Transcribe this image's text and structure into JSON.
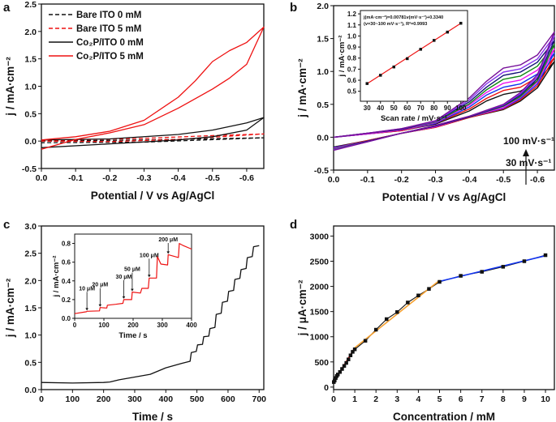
{
  "chart_data": [
    {
      "panel": "a",
      "type": "line",
      "xlabel": "Potential / V vs Ag/AgCl",
      "ylabel": "j / mA·cm⁻²",
      "xlim": [
        0,
        -0.65
      ],
      "ylim": [
        -0.5,
        2.5
      ],
      "xticks": [
        0.0,
        -0.1,
        -0.2,
        -0.3,
        -0.4,
        -0.5,
        -0.6
      ],
      "xtick_labels": [
        "0.0",
        "-0.1",
        "-0.2",
        "-0.3",
        "-0.4",
        "-0.5",
        "-0.6"
      ],
      "yticks": [
        -0.5,
        0.0,
        0.5,
        1.0,
        1.5,
        2.0,
        2.5
      ],
      "ytick_labels": [
        "-0.5",
        "0.0",
        "0.5",
        "1.0",
        "1.5",
        "2.0",
        "2.5"
      ],
      "legend": "top-left",
      "series": [
        {
          "name": "Bare ITO 0 mM",
          "color": "#111111",
          "dash": true,
          "x": [
            0,
            -0.3,
            -0.65,
            -0.3,
            0
          ],
          "y": [
            0.0,
            0.02,
            0.06,
            -0.02,
            -0.03
          ]
        },
        {
          "name": "Bare ITO 5 mM",
          "color": "#ee1111",
          "dash": true,
          "x": [
            0,
            -0.3,
            -0.5,
            -0.65,
            -0.4,
            -0.2,
            0
          ],
          "y": [
            0.01,
            0.05,
            0.1,
            0.13,
            0.03,
            -0.01,
            0.0
          ]
        },
        {
          "name": "Co₂P/ITO 0 mM",
          "color": "#111111",
          "dash": false,
          "x": [
            0,
            -0.2,
            -0.4,
            -0.5,
            -0.6,
            -0.65,
            -0.6,
            -0.5,
            -0.4,
            -0.2,
            0
          ],
          "y": [
            0.02,
            0.04,
            0.12,
            0.2,
            0.33,
            0.43,
            0.2,
            0.08,
            0.02,
            -0.05,
            -0.12
          ]
        },
        {
          "name": "Co₂P/ITO 5 mM",
          "color": "#ee1111",
          "dash": false,
          "x": [
            0,
            -0.1,
            -0.2,
            -0.3,
            -0.4,
            -0.45,
            -0.5,
            -0.55,
            -0.6,
            -0.65,
            -0.6,
            -0.55,
            -0.5,
            -0.4,
            -0.3,
            -0.2,
            -0.1,
            0
          ],
          "y": [
            0.02,
            0.08,
            0.18,
            0.38,
            0.8,
            1.1,
            1.45,
            1.65,
            1.8,
            2.08,
            1.4,
            1.15,
            0.95,
            0.6,
            0.3,
            0.15,
            0.03,
            -0.15
          ]
        }
      ]
    },
    {
      "panel": "b",
      "type": "line",
      "xlabel": "Potential / V vs Ag/AgCl",
      "ylabel": "j / mA·cm⁻²",
      "xlim": [
        0,
        -0.65
      ],
      "ylim": [
        -0.5,
        2.0
      ],
      "xticks": [
        0.0,
        -0.1,
        -0.2,
        -0.3,
        -0.4,
        -0.5,
        -0.6
      ],
      "xtick_labels": [
        "0.0",
        "-0.1",
        "-0.2",
        "-0.3",
        "-0.4",
        "-0.5",
        "-0.6"
      ],
      "yticks": [
        -0.5,
        0.0,
        0.5,
        1.0,
        1.5,
        2.0
      ],
      "ytick_labels": [
        "-0.5",
        "0.0",
        "0.5",
        "1.0",
        "1.5",
        "2.0"
      ],
      "x_loop": [
        0,
        -0.1,
        -0.2,
        -0.3,
        -0.4,
        -0.45,
        -0.5,
        -0.55,
        -0.6,
        -0.65,
        -0.6,
        -0.55,
        -0.5,
        -0.4,
        -0.3,
        -0.2,
        -0.1,
        0
      ],
      "series": [
        {
          "scan_rate": 30,
          "color": "#111111",
          "y": [
            0,
            0.05,
            0.1,
            0.2,
            0.4,
            0.55,
            0.65,
            0.7,
            0.85,
            1.15,
            0.75,
            0.55,
            0.42,
            0.3,
            0.15,
            0.06,
            -0.05,
            -0.15
          ]
        },
        {
          "scan_rate": 40,
          "color": "#ee1111",
          "y": [
            0,
            0.05,
            0.1,
            0.21,
            0.43,
            0.59,
            0.71,
            0.76,
            0.91,
            1.21,
            0.78,
            0.57,
            0.43,
            0.3,
            0.15,
            0.06,
            -0.05,
            -0.16
          ]
        },
        {
          "scan_rate": 50,
          "color": "#1133ee",
          "y": [
            0,
            0.05,
            0.11,
            0.21,
            0.46,
            0.64,
            0.76,
            0.81,
            0.96,
            1.28,
            0.81,
            0.59,
            0.44,
            0.31,
            0.16,
            0.06,
            -0.06,
            -0.16
          ]
        },
        {
          "scan_rate": 60,
          "color": "#ee11ee",
          "y": [
            0,
            0.05,
            0.11,
            0.22,
            0.49,
            0.68,
            0.82,
            0.87,
            1.02,
            1.34,
            0.84,
            0.61,
            0.45,
            0.31,
            0.16,
            0.06,
            -0.06,
            -0.17
          ]
        },
        {
          "scan_rate": 70,
          "color": "#118811",
          "y": [
            0,
            0.06,
            0.12,
            0.23,
            0.51,
            0.72,
            0.88,
            0.93,
            1.08,
            1.41,
            0.86,
            0.62,
            0.47,
            0.31,
            0.17,
            0.06,
            -0.06,
            -0.18
          ]
        },
        {
          "scan_rate": 80,
          "color": "#111177",
          "y": [
            0,
            0.06,
            0.12,
            0.24,
            0.54,
            0.76,
            0.94,
            0.99,
            1.14,
            1.47,
            0.89,
            0.64,
            0.48,
            0.31,
            0.17,
            0.06,
            -0.06,
            -0.19
          ]
        },
        {
          "scan_rate": 90,
          "color": "#8833ee",
          "y": [
            0,
            0.06,
            0.13,
            0.24,
            0.57,
            0.81,
            0.99,
            1.04,
            1.19,
            1.54,
            0.92,
            0.66,
            0.49,
            0.32,
            0.18,
            0.06,
            -0.07,
            -0.19
          ]
        },
        {
          "scan_rate": 100,
          "color": "#771199",
          "y": [
            0,
            0.06,
            0.13,
            0.25,
            0.6,
            0.85,
            1.05,
            1.1,
            1.25,
            1.6,
            0.95,
            0.68,
            0.5,
            0.32,
            0.18,
            0.06,
            -0.07,
            -0.2
          ]
        }
      ],
      "annotations": {
        "high": "100 mV·s⁻¹",
        "low": "30 mV·s⁻¹"
      },
      "inset": {
        "type": "scatter",
        "xlabel": "Scan rate / mV·s⁻¹",
        "ylabel": "j / mA·cm⁻²",
        "xlim": [
          25,
          105
        ],
        "ylim": [
          0.41,
          1.23
        ],
        "xticks": [
          30,
          40,
          50,
          60,
          70,
          80,
          90,
          100
        ],
        "xtick_labels": [
          "30",
          "40",
          "50",
          "60",
          "70",
          "80",
          "90",
          "100"
        ],
        "yticks": [
          0.5,
          0.6,
          0.7,
          0.8,
          0.9,
          1.0,
          1.1,
          1.2
        ],
        "ytick_labels": [
          "0.5",
          "0.6",
          "0.7",
          "0.8",
          "0.9",
          "1.0",
          "1.1",
          "1.2"
        ],
        "x": [
          30,
          40,
          50,
          60,
          70,
          80,
          90,
          100
        ],
        "y": [
          0.57,
          0.645,
          0.72,
          0.795,
          0.88,
          0.96,
          1.035,
          1.115
        ],
        "fit": {
          "slope": 0.00781,
          "intercept": 0.334,
          "color": "#ee1111"
        },
        "equation_line1": "j(mA·cm⁻²)=0.00781v(mV·s⁻¹)+0.3340",
        "equation_line2": "(v=30~100 mV·s⁻¹), R²=0.9993"
      }
    },
    {
      "panel": "c",
      "type": "line",
      "xlabel": "Time / s",
      "ylabel": "j / mA·cm⁻²",
      "xlim": [
        0,
        715
      ],
      "ylim": [
        0,
        3.0
      ],
      "xticks": [
        0,
        100,
        200,
        300,
        400,
        500,
        600,
        700
      ],
      "xtick_labels": [
        "0",
        "100",
        "200",
        "300",
        "400",
        "500",
        "600",
        "700"
      ],
      "yticks": [
        0,
        0.5,
        1.0,
        1.5,
        2.0,
        2.5,
        3.0
      ],
      "ytick_labels": [
        "0.0",
        "0.5",
        "1.0",
        "1.5",
        "2.0",
        "2.5",
        "3.0"
      ],
      "series": [
        {
          "color": "#111111",
          "x": [
            0,
            100,
            200,
            220,
            250,
            300,
            350,
            400,
            450,
            478,
            482,
            498,
            502,
            518,
            522,
            538,
            542,
            558,
            562,
            578,
            582,
            598,
            602,
            618,
            622,
            638,
            642,
            658,
            662,
            678,
            682,
            700
          ],
          "y": [
            0.13,
            0.12,
            0.13,
            0.14,
            0.18,
            0.23,
            0.28,
            0.4,
            0.48,
            0.52,
            0.68,
            0.7,
            0.82,
            0.83,
            0.97,
            0.98,
            1.12,
            1.14,
            1.38,
            1.4,
            1.6,
            1.62,
            1.8,
            1.82,
            2.02,
            2.04,
            2.2,
            2.22,
            2.42,
            2.44,
            2.62,
            2.64
          ]
        }
      ],
      "inset": {
        "type": "line",
        "xlabel": "Time / s",
        "ylabel": "j / mA·cm⁻²",
        "xlim": [
          0,
          400
        ],
        "ylim": [
          0,
          0.9
        ],
        "xticks": [
          0,
          100,
          200,
          300,
          400
        ],
        "xtick_labels": [
          "0",
          "100",
          "200",
          "300",
          "400"
        ],
        "yticks": [
          0,
          0.2,
          0.4,
          0.6,
          0.8
        ],
        "ytick_labels": [
          "0.0",
          "0.2",
          "0.4",
          "0.6",
          "0.8"
        ],
        "color": "#ee1111",
        "x": [
          0,
          40,
          42,
          85,
          87,
          110,
          112,
          140,
          165,
          168,
          195,
          197,
          225,
          230,
          252,
          255,
          280,
          283,
          295,
          318,
          320,
          355,
          358,
          370,
          400
        ],
        "y": [
          0.05,
          0.07,
          0.075,
          0.08,
          0.115,
          0.11,
          0.14,
          0.15,
          0.16,
          0.2,
          0.2,
          0.28,
          0.27,
          0.32,
          0.32,
          0.43,
          0.43,
          0.66,
          0.58,
          0.57,
          0.68,
          0.65,
          0.8,
          0.78,
          0.74
        ],
        "additions": [
          {
            "label": "10 μM",
            "t": 42,
            "j": 0.075
          },
          {
            "label": "20 μM",
            "t": 87,
            "j": 0.115
          },
          {
            "label": "30 μM",
            "t": 168,
            "j": 0.2
          },
          {
            "label": "50 μM",
            "t": 197,
            "j": 0.28
          },
          {
            "label": "100 μM",
            "t": 255,
            "j": 0.43
          },
          {
            "label": "200 μM",
            "t": 320,
            "j": 0.68
          }
        ]
      }
    },
    {
      "panel": "d",
      "type": "scatter",
      "xlabel": "Concentration / mM",
      "ylabel": "j / μA·cm⁻²",
      "xlim": [
        0,
        10.42
      ],
      "ylim": [
        -50,
        3200
      ],
      "xticks": [
        0,
        1,
        2,
        3,
        4,
        5,
        6,
        7,
        8,
        9,
        10
      ],
      "xtick_labels": [
        "0",
        "1",
        "2",
        "3",
        "4",
        "5",
        "6",
        "7",
        "8",
        "9",
        "10"
      ],
      "yticks": [
        0,
        500,
        1000,
        1500,
        2000,
        2500,
        3000
      ],
      "ytick_labels": [
        "0",
        "500",
        "1000",
        "1500",
        "2000",
        "2500",
        "3000"
      ],
      "x": [
        0.01,
        0.05,
        0.1,
        0.15,
        0.2,
        0.3,
        0.4,
        0.5,
        0.6,
        0.7,
        0.8,
        0.9,
        1,
        1.5,
        2,
        2.5,
        3,
        3.5,
        4,
        4.5,
        5,
        6,
        7,
        8,
        9,
        10
      ],
      "y": [
        100,
        130,
        180,
        220,
        250,
        300,
        360,
        420,
        480,
        550,
        630,
        700,
        750,
        920,
        1140,
        1350,
        1490,
        1680,
        1820,
        1950,
        2090,
        2210,
        2290,
        2390,
        2500,
        2620
      ],
      "fits": [
        {
          "color": "#ee1111",
          "x": [
            0,
            1
          ],
          "y": [
            100,
            780
          ]
        },
        {
          "color": "#f5a030",
          "x": [
            1,
            5
          ],
          "y": [
            780,
            2120
          ]
        },
        {
          "color": "#1133ee",
          "x": [
            5,
            10
          ],
          "y": [
            2100,
            2610
          ]
        }
      ]
    }
  ]
}
